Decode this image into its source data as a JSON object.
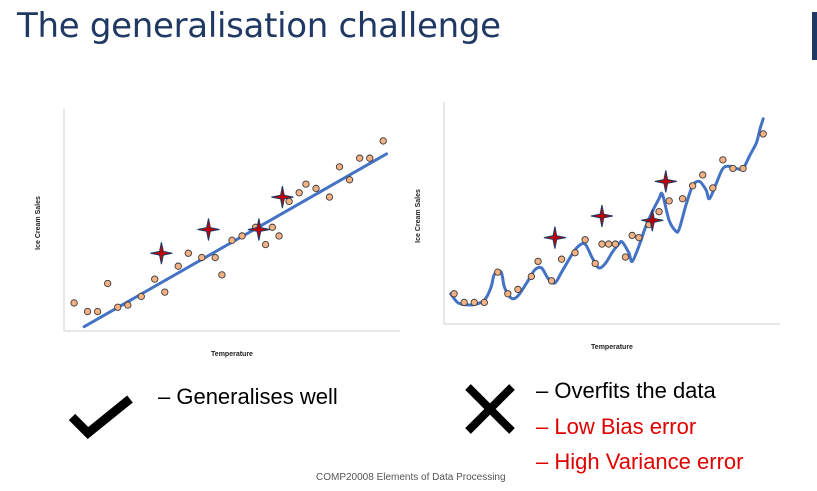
{
  "slide": {
    "title": "The generalisation challenge",
    "footer": "COMP20008 Elements of Data Processing"
  },
  "left_caption": "– Generalises well",
  "right_captions": {
    "line1": "– Overfits the data",
    "line2": "– Low Bias error",
    "line3": "– High Variance error"
  },
  "icons": {
    "left": "checkmark-icon",
    "right": "cross-icon"
  },
  "colors": {
    "title": "#1f3864",
    "points": "#f4b183",
    "fit_line": "#4472c4",
    "stars": "#c00000",
    "error_text": "#e00000"
  },
  "chart_data": [
    {
      "type": "scatter",
      "xlabel": "Temperature",
      "ylabel": "Ice Cream Sales",
      "xlim": [
        0,
        100
      ],
      "ylim": [
        0,
        100
      ],
      "points": [
        [
          3,
          13
        ],
        [
          7,
          9
        ],
        [
          10,
          9
        ],
        [
          13,
          22
        ],
        [
          16,
          11
        ],
        [
          19,
          12
        ],
        [
          23,
          16
        ],
        [
          27,
          24
        ],
        [
          30,
          18
        ],
        [
          34,
          30
        ],
        [
          37,
          36
        ],
        [
          41,
          34
        ],
        [
          45,
          34
        ],
        [
          47,
          26
        ],
        [
          50,
          42
        ],
        [
          53,
          44
        ],
        [
          57,
          48
        ],
        [
          60,
          40
        ],
        [
          62,
          48
        ],
        [
          64,
          44
        ],
        [
          67,
          60
        ],
        [
          70,
          64
        ],
        [
          72,
          68
        ],
        [
          75,
          66
        ],
        [
          79,
          62
        ],
        [
          82,
          76
        ],
        [
          85,
          70
        ],
        [
          88,
          80
        ],
        [
          91,
          80
        ],
        [
          95,
          88
        ]
      ],
      "highlighted": [
        [
          29,
          36
        ],
        [
          43,
          47
        ],
        [
          58,
          47
        ],
        [
          65,
          62
        ]
      ],
      "fit": {
        "type": "linear",
        "from": [
          6,
          2
        ],
        "to": [
          96,
          82
        ]
      }
    },
    {
      "type": "scatter",
      "xlabel": "Temperature",
      "ylabel": "Ice Cream Sales",
      "xlim": [
        0,
        100
      ],
      "ylim": [
        0,
        100
      ],
      "points": [
        [
          3,
          14
        ],
        [
          6,
          10
        ],
        [
          9,
          10
        ],
        [
          12,
          10
        ],
        [
          16,
          24
        ],
        [
          19,
          14
        ],
        [
          22,
          16
        ],
        [
          26,
          22
        ],
        [
          28,
          29
        ],
        [
          32,
          20
        ],
        [
          35,
          30
        ],
        [
          39,
          33
        ],
        [
          42,
          39
        ],
        [
          45,
          28
        ],
        [
          47,
          37
        ],
        [
          49,
          37
        ],
        [
          51,
          37
        ],
        [
          54,
          31
        ],
        [
          56,
          41
        ],
        [
          58,
          40
        ],
        [
          61,
          46
        ],
        [
          64,
          52
        ],
        [
          67,
          57
        ],
        [
          71,
          58
        ],
        [
          74,
          64
        ],
        [
          77,
          69
        ],
        [
          80,
          63
        ],
        [
          83,
          76
        ],
        [
          86,
          72
        ],
        [
          89,
          72
        ],
        [
          95,
          88
        ]
      ],
      "highlighted": [
        [
          33,
          40
        ],
        [
          47,
          50
        ],
        [
          62,
          48
        ],
        [
          66,
          66
        ]
      ],
      "fit": {
        "type": "curve",
        "points": [
          [
            2,
            14
          ],
          [
            4,
            10
          ],
          [
            6,
            9
          ],
          [
            9,
            9
          ],
          [
            12,
            11
          ],
          [
            14,
            17
          ],
          [
            15,
            23
          ],
          [
            17,
            24
          ],
          [
            18,
            17
          ],
          [
            20,
            12
          ],
          [
            22,
            13
          ],
          [
            25,
            20
          ],
          [
            27,
            25
          ],
          [
            29,
            26
          ],
          [
            31,
            21
          ],
          [
            33,
            19
          ],
          [
            35,
            24
          ],
          [
            38,
            32
          ],
          [
            40,
            36
          ],
          [
            42,
            37
          ],
          [
            44,
            31
          ],
          [
            46,
            26
          ],
          [
            48,
            28
          ],
          [
            50,
            33
          ],
          [
            52,
            37
          ],
          [
            53,
            38
          ],
          [
            55,
            33
          ],
          [
            56,
            29
          ],
          [
            58,
            36
          ],
          [
            60,
            45
          ],
          [
            62,
            52
          ],
          [
            64,
            58
          ],
          [
            65,
            60
          ],
          [
            67,
            48
          ],
          [
            69,
            43
          ],
          [
            70,
            44
          ],
          [
            72,
            55
          ],
          [
            74,
            64
          ],
          [
            76,
            66
          ],
          [
            78,
            62
          ],
          [
            79,
            58
          ],
          [
            81,
            65
          ],
          [
            83,
            72
          ],
          [
            85,
            73
          ],
          [
            87,
            72
          ],
          [
            89,
            72
          ],
          [
            91,
            78
          ],
          [
            93,
            84
          ],
          [
            94,
            90
          ],
          [
            95,
            95
          ]
        ]
      }
    }
  ]
}
